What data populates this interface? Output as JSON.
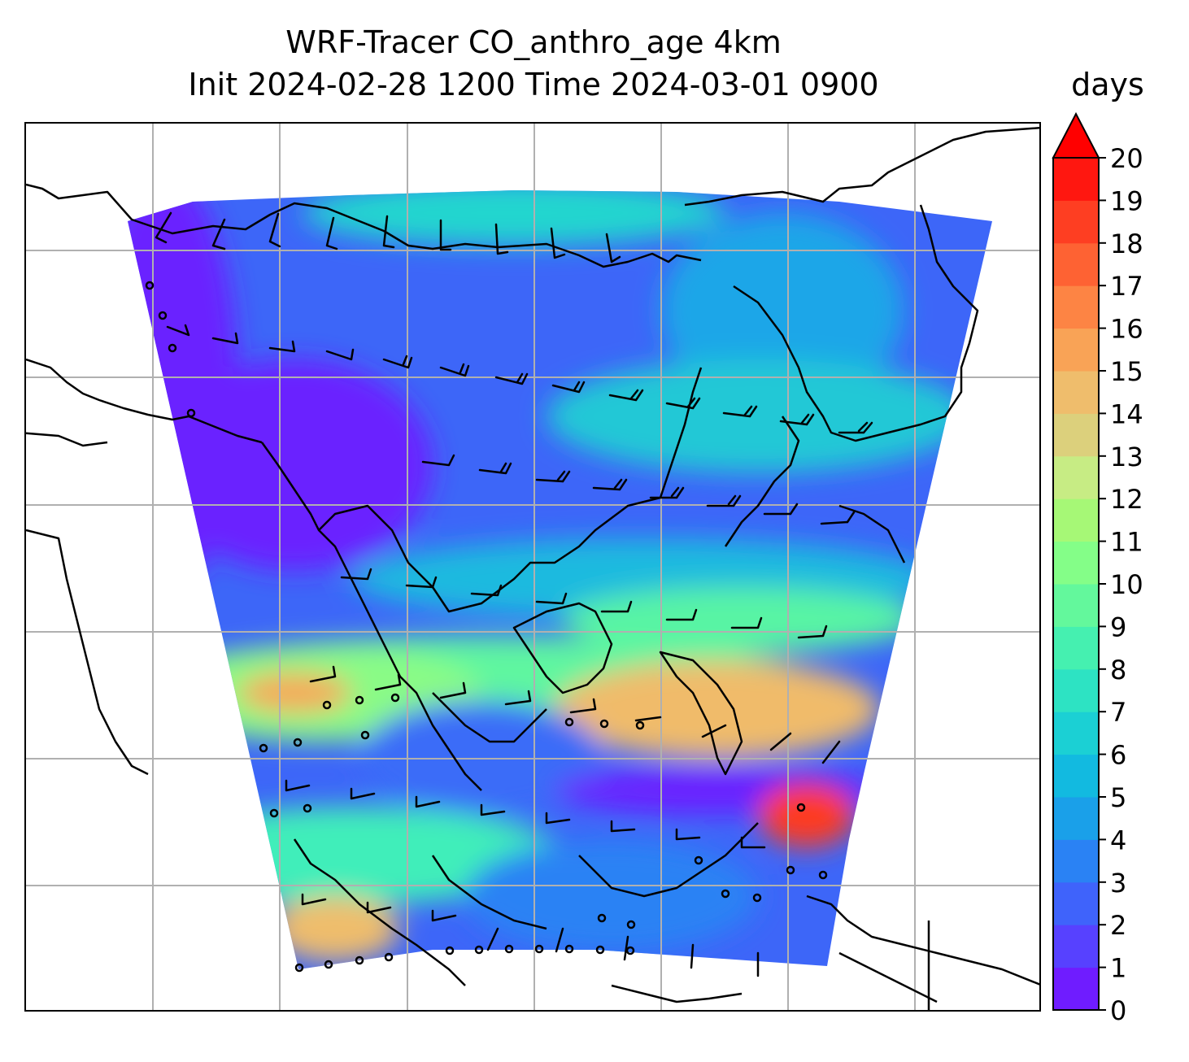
{
  "title": {
    "line1": "WRF-Tracer CO_anthro_age 4km",
    "line2": "Init 2024-02-28 1200 Time 2024-03-01 0900"
  },
  "colorbar": {
    "unit": "days",
    "extend": "max",
    "ticks": [
      "0",
      "1",
      "2",
      "3",
      "4",
      "5",
      "6",
      "7",
      "8",
      "9",
      "10",
      "11",
      "12",
      "13",
      "14",
      "15",
      "16",
      "17",
      "18",
      "19",
      "20"
    ],
    "colors": [
      "#6f1cff",
      "#5741ff",
      "#3f63fb",
      "#2a82f4",
      "#1aa0e9",
      "#12bae0",
      "#1bd0d4",
      "#2de3c3",
      "#45f0b0",
      "#63f89c",
      "#84fe88",
      "#a6f876",
      "#c7ec84",
      "#dcd07c",
      "#efbd6c",
      "#f9a356",
      "#fd8444",
      "#fe6233",
      "#fe3e22",
      "#ff1710"
    ],
    "over_color": "#ff0000"
  },
  "map": {
    "gridlines": true,
    "features": [
      "coastlines",
      "wind-barbs",
      "calm-circles",
      "tracer-age-field"
    ]
  }
}
